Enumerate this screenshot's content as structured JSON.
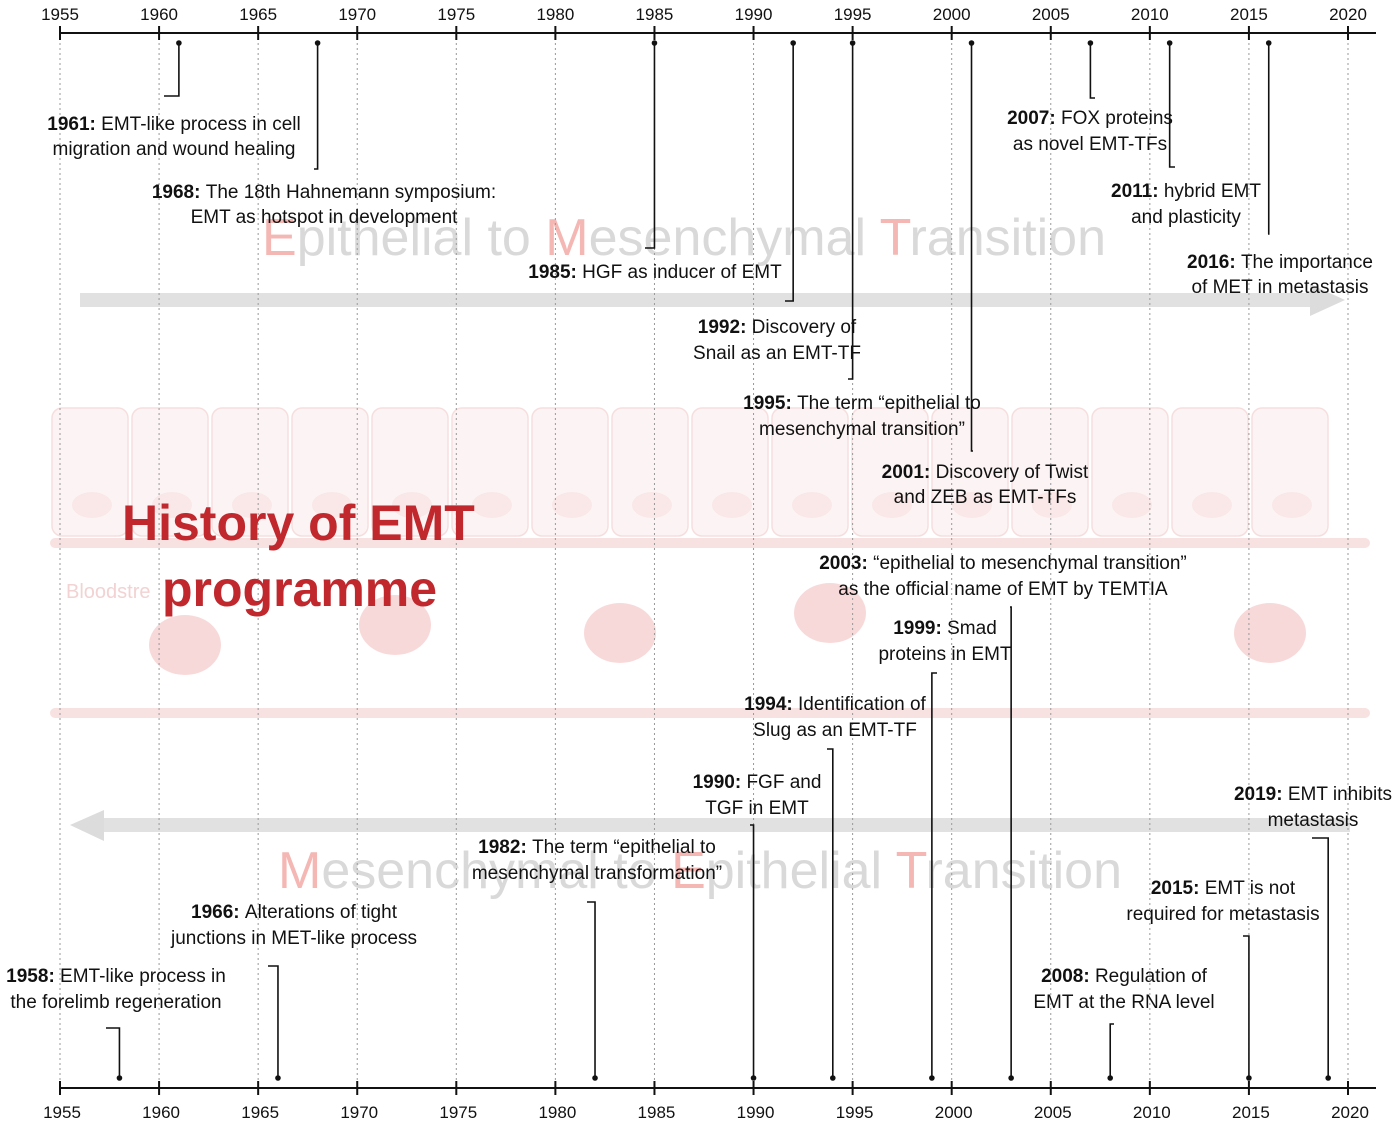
{
  "title": {
    "line1": "History of EMT",
    "line2": "programme"
  },
  "top_banner": {
    "words": [
      {
        "cap": "E",
        "rest": "pithelial to "
      },
      {
        "cap": "M",
        "rest": "esenchymal "
      },
      {
        "cap": "T",
        "rest": "ransition"
      }
    ]
  },
  "bottom_banner": {
    "words": [
      {
        "cap": "M",
        "rest": "esenchymal to "
      },
      {
        "cap": "E",
        "rest": "pithelial "
      },
      {
        "cap": "T",
        "rest": "ransition"
      }
    ]
  },
  "background_label": "Bloodstre",
  "axis": {
    "start_year": 1955,
    "end_year": 2020,
    "tick_labels": [
      "1955",
      "1960",
      "1965",
      "1970",
      "1975",
      "1980",
      "1985",
      "1990",
      "1995",
      "2000",
      "2005",
      "2010",
      "2015",
      "2020"
    ]
  },
  "colors": {
    "title_red": "#c0282d",
    "banner_cap_pink": "#f4b7b3",
    "banner_grey": "#d9d9d9",
    "arrow_grey": "#dcdcdc",
    "cell_pink": "#f2c4c4"
  },
  "emt_events": [
    {
      "year": "1961",
      "lines": [
        "EMT-like process in cell",
        "migration and  wound healing"
      ]
    },
    {
      "year": "1968",
      "lines": [
        "The 18th Hahnemann symposium:",
        "EMT as hotspot in development"
      ]
    },
    {
      "year": "1985",
      "lines": [
        "HGF as inducer of EMT"
      ]
    },
    {
      "year": "1992",
      "lines": [
        "Discovery of",
        "Snail as an EMT-TF"
      ]
    },
    {
      "year": "1995",
      "lines": [
        "The term “epithelial to",
        "mesenchymal transition”"
      ]
    },
    {
      "year": "2001",
      "lines": [
        "Discovery of Twist",
        "and ZEB as EMT-TFs"
      ]
    },
    {
      "year": "2007",
      "lines": [
        "FOX proteins",
        "as novel EMT-TFs"
      ]
    },
    {
      "year": "2011",
      "lines": [
        "hybrid EMT",
        "and plasticity"
      ]
    },
    {
      "year": "2016",
      "lines": [
        "The importance",
        "of MET in metastasis"
      ]
    }
  ],
  "met_events": [
    {
      "year": "2003",
      "lines": [
        "“epithelial to mesenchymal transition”",
        "as the official name of EMT by TEMTIA"
      ]
    },
    {
      "year": "1999",
      "lines": [
        "Smad",
        "proteins in EMT"
      ]
    },
    {
      "year": "1994",
      "lines": [
        "Identification of",
        "Slug as an EMT-TF"
      ]
    },
    {
      "year": "1990",
      "lines": [
        "FGF and",
        "TGF in EMT"
      ]
    },
    {
      "year": "2019",
      "lines": [
        "EMT inhibits",
        "metastasis"
      ]
    },
    {
      "year": "1982",
      "lines": [
        "The term “epithelial to",
        "mesenchymal transformation”"
      ]
    },
    {
      "year": "2015",
      "lines": [
        "EMT is not",
        "required for metastasis"
      ]
    },
    {
      "year": "1966",
      "lines": [
        "Alterations of tight",
        "junctions in MET-like process"
      ]
    },
    {
      "year": "1958",
      "lines": [
        "EMT-like process in",
        "the forelimb regeneration"
      ]
    },
    {
      "year": "2008",
      "lines": [
        "Regulation of",
        "EMT at the RNA level"
      ]
    }
  ]
}
